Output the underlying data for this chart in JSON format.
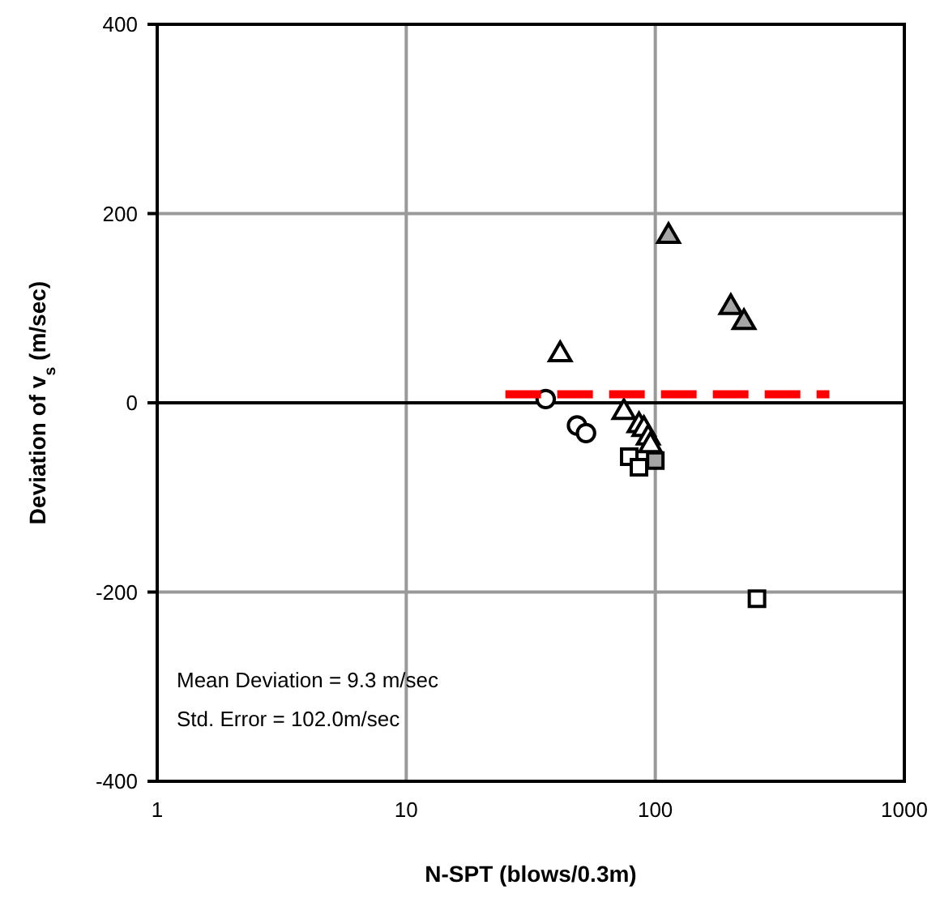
{
  "chart_data": {
    "type": "scatter",
    "xlabel": "N-SPT (blows/0.3m)",
    "ylabel": "Deviation of v$_{s}$ (m/sec)",
    "log": "x",
    "grid": true,
    "xlim": [
      1,
      1000
    ],
    "xticks": [
      1,
      10,
      100,
      1000
    ],
    "ylim": [
      -400,
      400
    ],
    "yticks": [
      -400,
      -200,
      0,
      200,
      400
    ],
    "annotations": [
      "Mean Deviation = 9.3 m/sec",
      "Std. Error = 102.0m/sec"
    ],
    "series": [
      {
        "marker": "triangle",
        "color": "#ffffff",
        "x": [
          41.5,
          74.8,
          86,
          90,
          93.7,
          95.6
        ],
        "values": [
          51,
          -10,
          -24,
          -28,
          -37,
          -45
        ]
      },
      {
        "marker": "triangle",
        "color": "#a6a6a6",
        "x": [
          113,
          201,
          227
        ],
        "values": [
          176,
          101,
          85
        ]
      },
      {
        "marker": "circle",
        "color": "#ffffff",
        "x": [
          36.3,
          48.5,
          52.7
        ],
        "values": [
          4,
          -24,
          -32
        ]
      },
      {
        "marker": "square",
        "color": "#ffffff",
        "x": [
          78.6,
          86,
          256
        ],
        "values": [
          -57,
          -68,
          -207
        ]
      },
      {
        "marker": "square",
        "color": "#a6a6a6",
        "x": [
          100
        ],
        "values": [
          -61
        ]
      },
      {
        "type": "line",
        "marker": "none",
        "line_style": "dashed",
        "color": "#ff0000",
        "x": [
          25,
          500
        ],
        "values": [
          9,
          9
        ]
      }
    ]
  }
}
